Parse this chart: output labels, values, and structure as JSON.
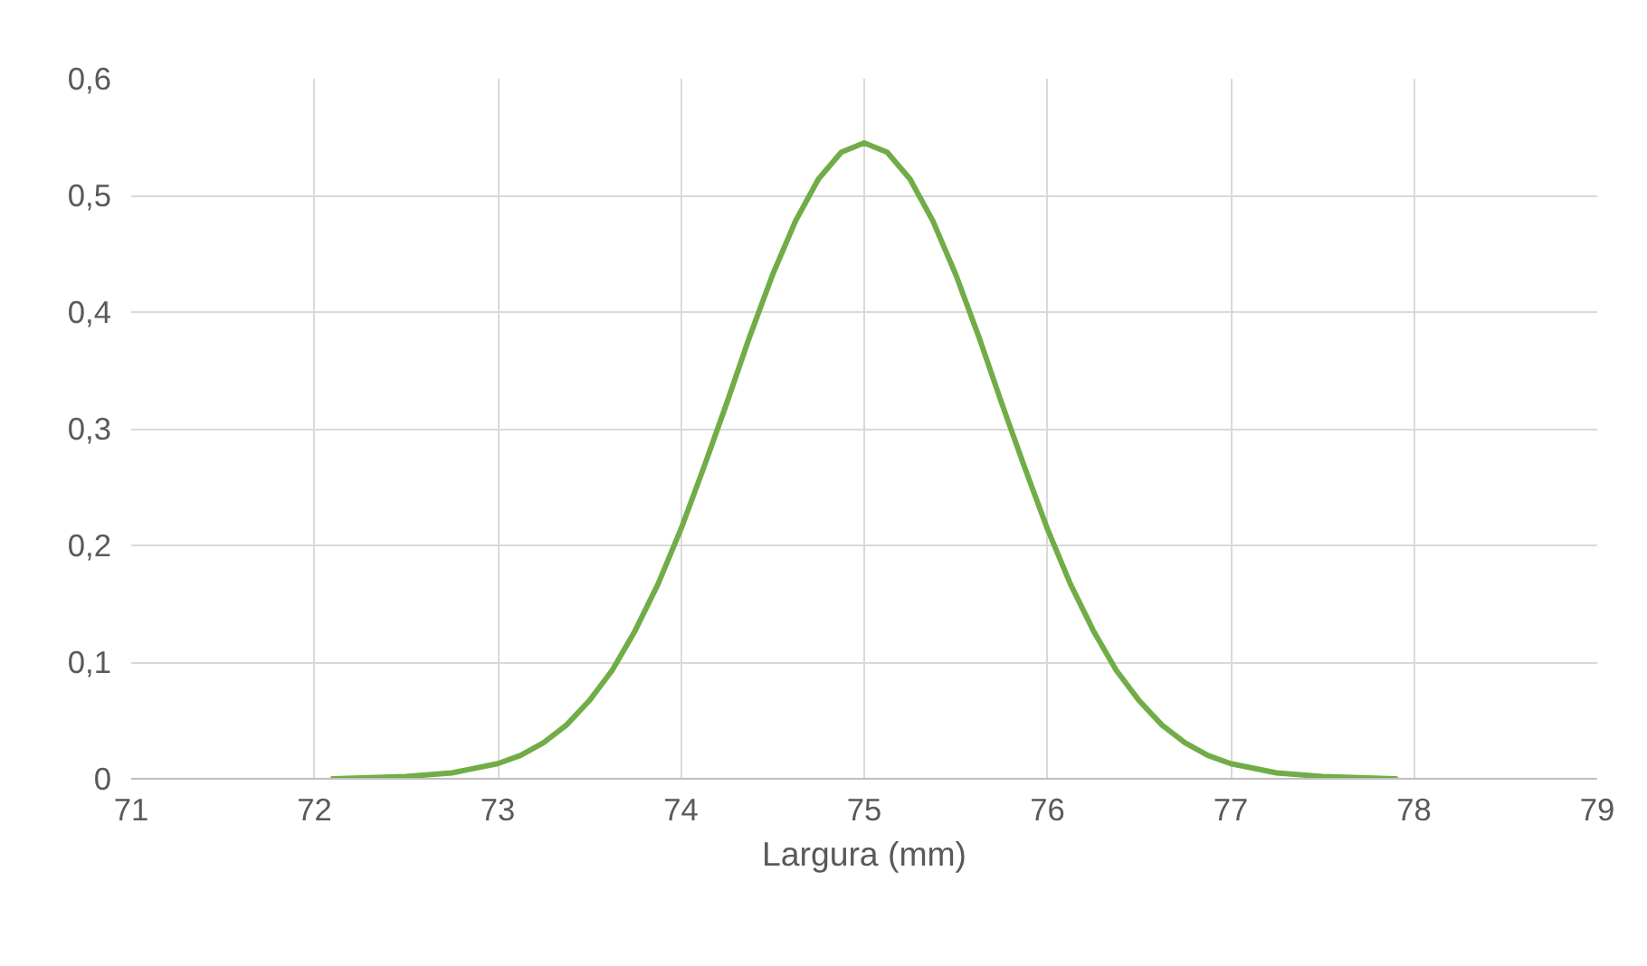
{
  "chart_data": {
    "type": "line",
    "xlabel": "Largura (mm)",
    "x": [
      72.1,
      72.5,
      72.75,
      73.0,
      73.125,
      73.25,
      73.375,
      73.5,
      73.625,
      73.75,
      73.875,
      74.0,
      74.125,
      74.25,
      74.375,
      74.5,
      74.625,
      74.75,
      74.875,
      75.0,
      75.125,
      75.25,
      75.375,
      75.5,
      75.625,
      75.75,
      75.875,
      76.0,
      76.125,
      76.25,
      76.375,
      76.5,
      76.625,
      76.75,
      76.875,
      77.0,
      77.25,
      77.5,
      77.9
    ],
    "series": [
      {
        "color": "#70ad47",
        "values": [
          0.0,
          0.002,
          0.005,
          0.013,
          0.02,
          0.031,
          0.046,
          0.067,
          0.093,
          0.127,
          0.167,
          0.214,
          0.267,
          0.322,
          0.379,
          0.432,
          0.478,
          0.514,
          0.537,
          0.545,
          0.537,
          0.514,
          0.478,
          0.432,
          0.379,
          0.322,
          0.267,
          0.214,
          0.167,
          0.127,
          0.093,
          0.067,
          0.046,
          0.031,
          0.02,
          0.013,
          0.005,
          0.002,
          0.0
        ]
      }
    ],
    "xlim": [
      71,
      79
    ],
    "xticks": [
      71,
      72,
      73,
      74,
      75,
      76,
      77,
      78,
      79
    ],
    "ylim": [
      0,
      0.6
    ],
    "yticks": [
      {
        "value": 0,
        "label": "0"
      },
      {
        "value": 0.1,
        "label": "0,1"
      },
      {
        "value": 0.2,
        "label": "0,2"
      },
      {
        "value": 0.3,
        "label": "0,3"
      },
      {
        "value": 0.4,
        "label": "0,4"
      },
      {
        "value": 0.5,
        "label": "0,5"
      },
      {
        "value": 0.6,
        "label": "0,6"
      }
    ],
    "grid": true,
    "marker": "none",
    "line_style": "solid"
  }
}
